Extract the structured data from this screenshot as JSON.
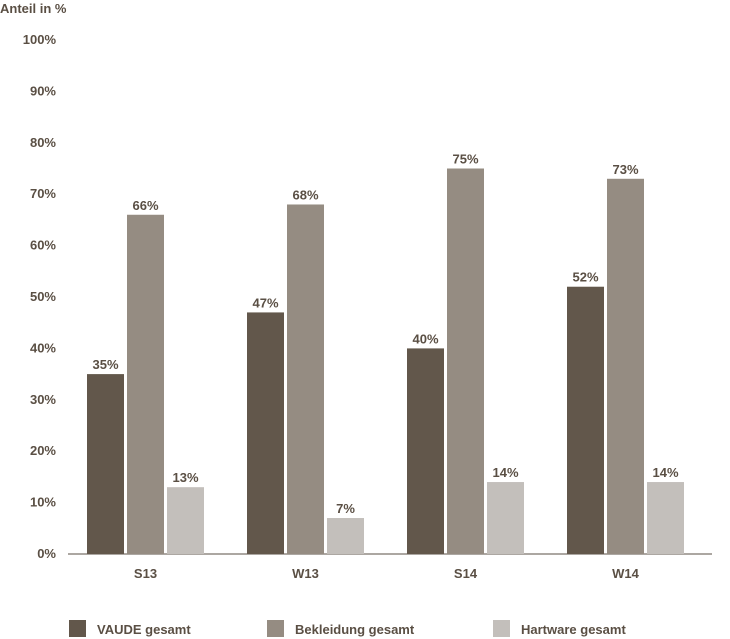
{
  "chart_data": {
    "type": "bar",
    "ylabel": "Anteil in %",
    "ylim": [
      0,
      100
    ],
    "yticks": [
      "0%",
      "10%",
      "20%",
      "30%",
      "40%",
      "50%",
      "60%",
      "70%",
      "80%",
      "90%",
      "100%"
    ],
    "categories": [
      "S13",
      "W13",
      "S14",
      "W14"
    ],
    "series": [
      {
        "name": "VAUDE gesamt",
        "values": [
          35,
          47,
          40,
          52
        ],
        "labels": [
          "35%",
          "47%",
          "40%",
          "52%"
        ],
        "color": "#62574b"
      },
      {
        "name": "Bekleidung gesamt",
        "values": [
          66,
          68,
          75,
          73
        ],
        "labels": [
          "66%",
          "68%",
          "75%",
          "73%"
        ],
        "color": "#958c82"
      },
      {
        "name": "Hartware gesamt",
        "values": [
          13,
          7,
          14,
          14
        ],
        "labels": [
          "13%",
          "7%",
          "14%",
          "14%"
        ],
        "color": "#c3bfbb"
      }
    ],
    "grid": false,
    "legend_position": "bottom"
  }
}
